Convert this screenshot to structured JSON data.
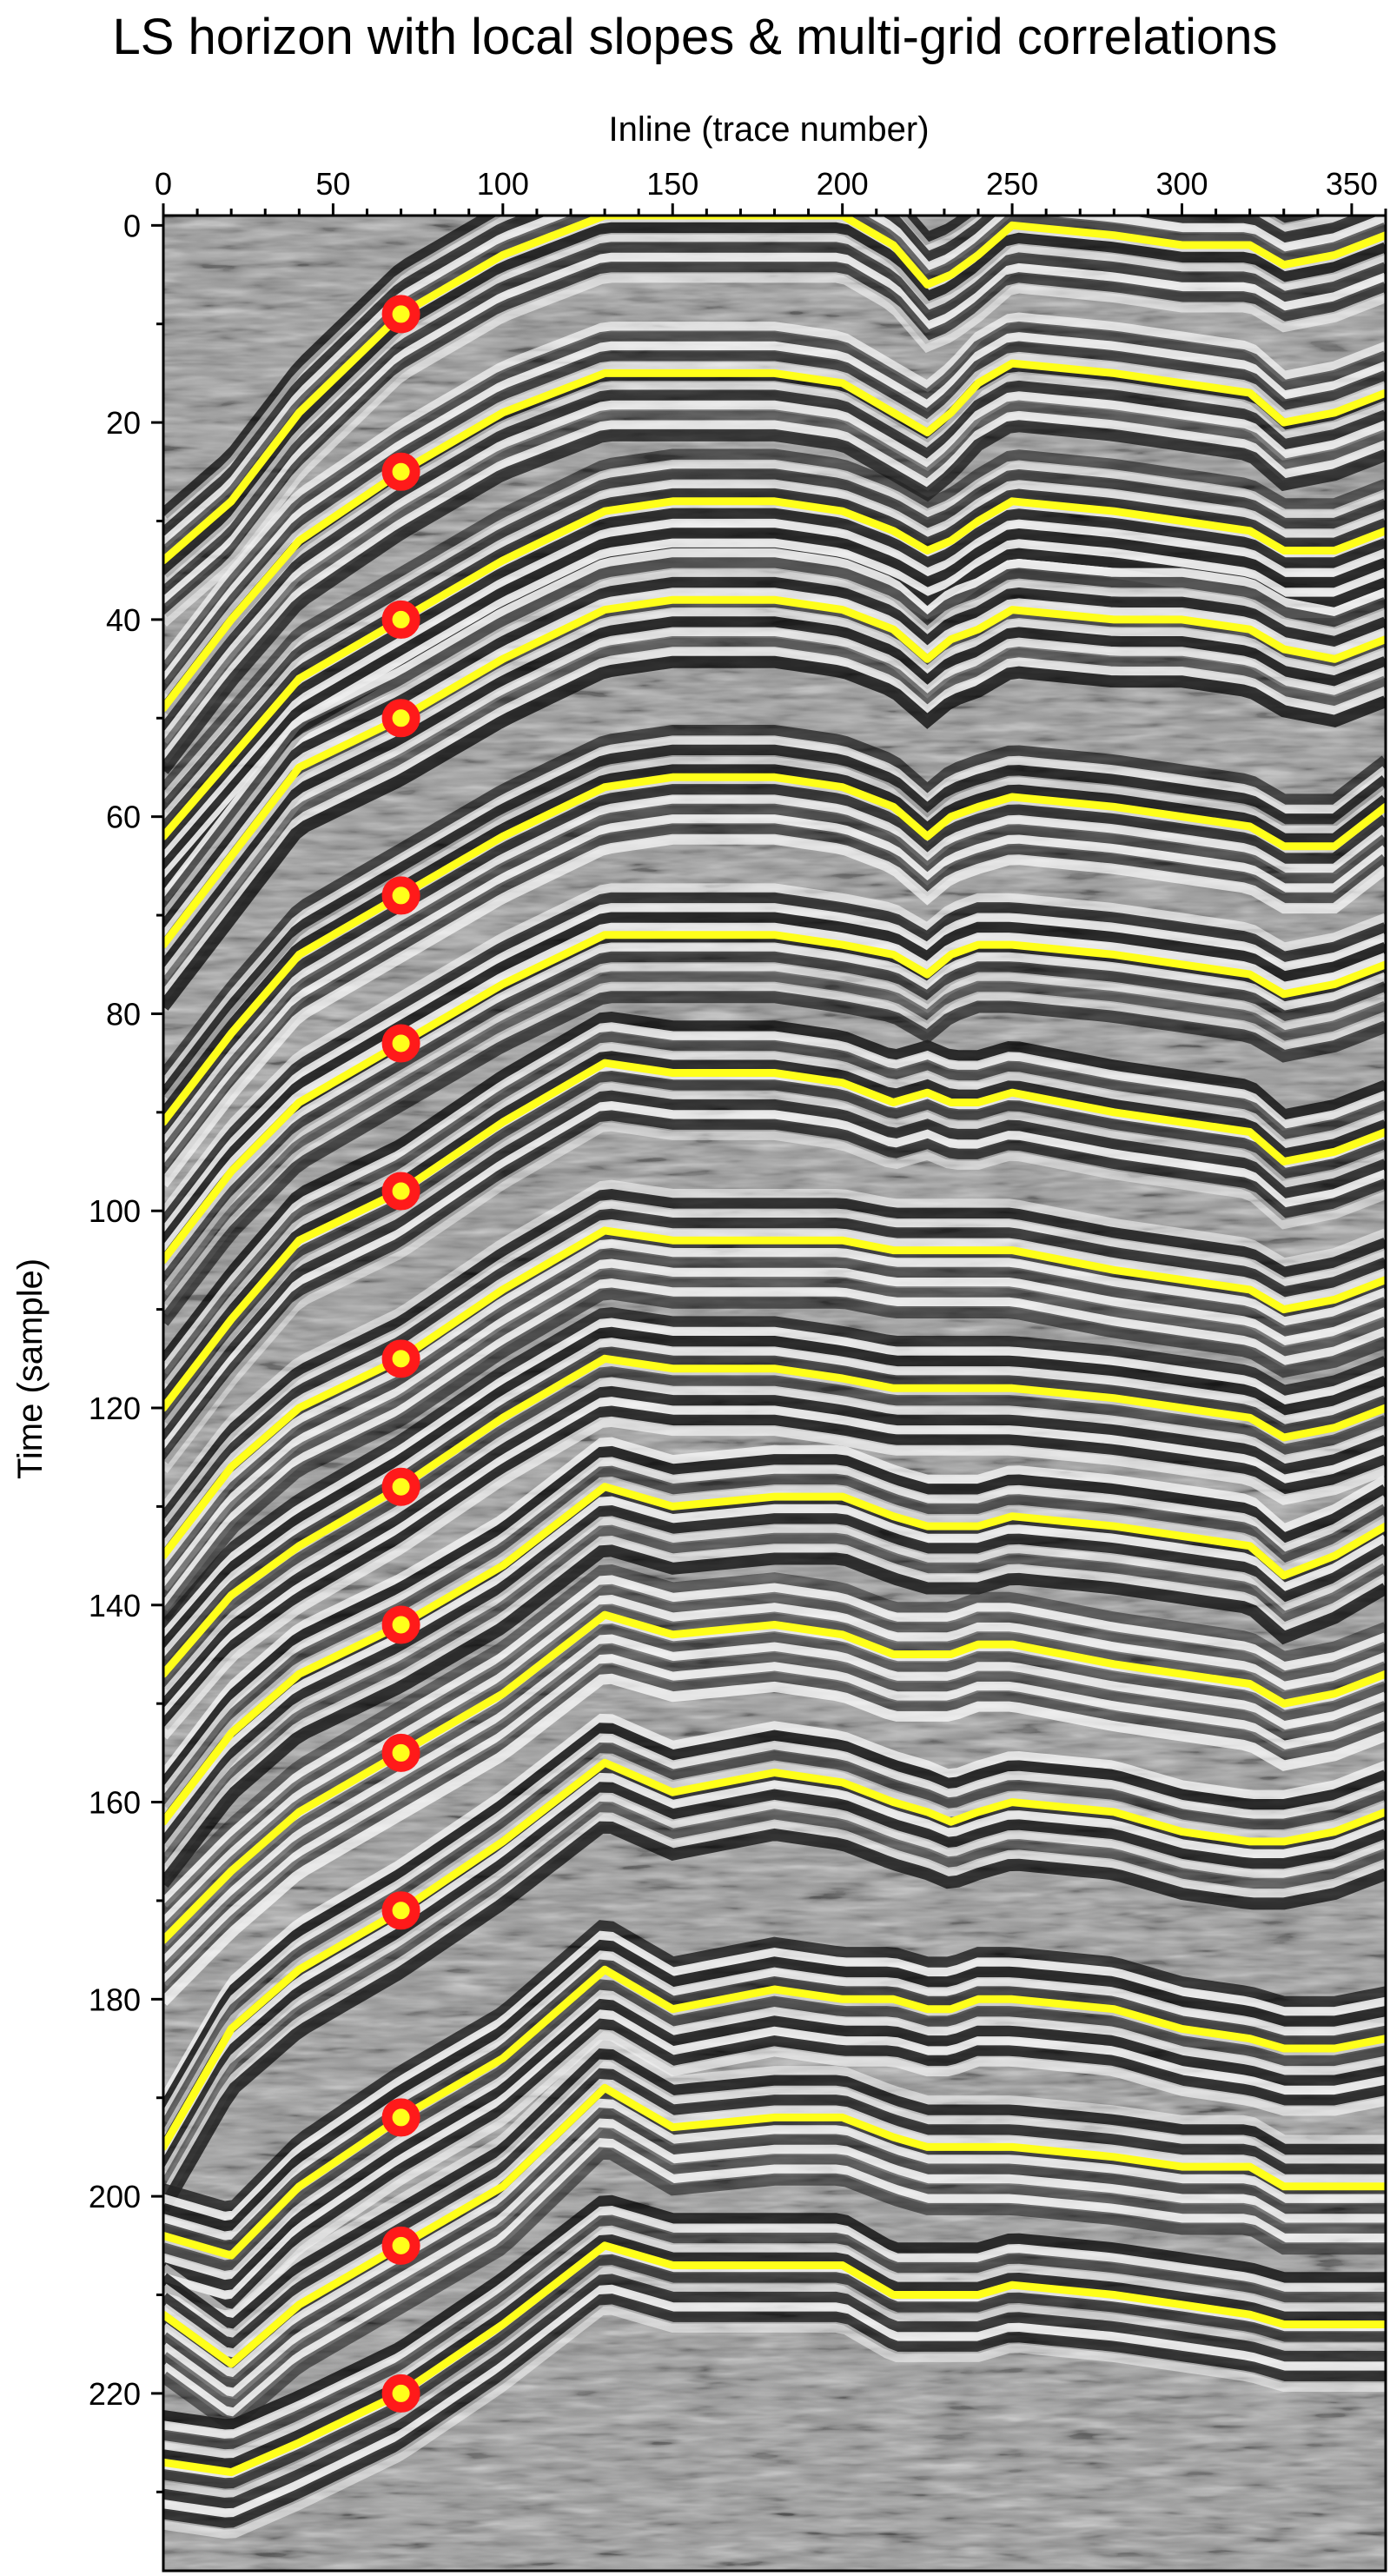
{
  "chart_data": {
    "type": "line",
    "title": "LS horizon with local slopes & multi-grid correlations",
    "xlabel": "Inline (trace number)",
    "ylabel": "Time (sample)",
    "xlim": [
      0,
      360
    ],
    "ylim": [
      238,
      -1
    ],
    "y_inverted": true,
    "x_axis_position": "top",
    "x_ticks": [
      0,
      50,
      100,
      150,
      200,
      250,
      300,
      350
    ],
    "x_tick_labels": [
      "0",
      "50",
      "100",
      "150",
      "200",
      "250",
      "300",
      "350"
    ],
    "y_ticks": [
      0,
      20,
      40,
      60,
      80,
      100,
      120,
      140,
      160,
      180,
      200,
      220
    ],
    "y_tick_labels": [
      "0",
      "20",
      "40",
      "60",
      "80",
      "100",
      "120",
      "140",
      "160",
      "180",
      "200",
      "220"
    ],
    "grid": false,
    "legend": "none",
    "background": "grayscale seismic amplitude section",
    "x": [
      0,
      20,
      40,
      70,
      100,
      130,
      150,
      180,
      200,
      215,
      225,
      232,
      240,
      250,
      280,
      300,
      320,
      330,
      345,
      360
    ],
    "series": [
      {
        "values": [
          34,
          28,
          19,
          9,
          3,
          -1,
          -1,
          -1,
          -1,
          2,
          6,
          5,
          3,
          0,
          1,
          2,
          2,
          4,
          3,
          1
        ]
      },
      {
        "values": [
          49,
          40,
          32,
          25,
          19,
          15,
          15,
          15,
          16,
          19,
          21,
          19,
          16,
          14,
          15,
          16,
          17,
          20,
          19,
          17
        ]
      },
      {
        "values": [
          62,
          54,
          46,
          40,
          34,
          29,
          28,
          28,
          29,
          31,
          33,
          32,
          30,
          28,
          29,
          30,
          31,
          33,
          33,
          31
        ]
      },
      {
        "values": [
          73,
          64,
          55,
          50,
          44,
          39,
          38,
          38,
          39,
          41,
          44,
          42,
          41,
          39,
          40,
          40,
          41,
          43,
          44,
          42
        ]
      },
      {
        "values": [
          91,
          82,
          74,
          68,
          62,
          57,
          56,
          56,
          57,
          59,
          62,
          60,
          59,
          58,
          59,
          60,
          61,
          63,
          63,
          59
        ]
      },
      {
        "values": [
          105,
          96,
          89,
          83,
          77,
          72,
          72,
          72,
          73,
          74,
          76,
          74,
          73,
          73,
          74,
          75,
          76,
          78,
          77,
          75
        ]
      },
      {
        "values": [
          120,
          111,
          103,
          98,
          91,
          85,
          86,
          86,
          87,
          89,
          88,
          89,
          89,
          88,
          90,
          91,
          92,
          95,
          94,
          92
        ]
      },
      {
        "values": [
          135,
          126,
          120,
          115,
          108,
          102,
          103,
          103,
          103,
          104,
          104,
          104,
          104,
          104,
          106,
          107,
          108,
          110,
          109,
          107
        ]
      },
      {
        "values": [
          147,
          139,
          134,
          128,
          121,
          115,
          116,
          116,
          117,
          118,
          118,
          118,
          118,
          118,
          119,
          120,
          121,
          123,
          122,
          120
        ]
      },
      {
        "values": [
          162,
          153,
          147,
          142,
          136,
          128,
          130,
          129,
          129,
          131,
          132,
          132,
          132,
          131,
          132,
          133,
          134,
          137,
          135,
          132
        ]
      },
      {
        "values": [
          174,
          167,
          161,
          155,
          149,
          141,
          143,
          142,
          143,
          145,
          145,
          145,
          144,
          144,
          146,
          147,
          148,
          150,
          149,
          147
        ]
      },
      {
        "values": [
          195,
          183,
          177,
          171,
          164,
          156,
          159,
          157,
          158,
          160,
          161,
          162,
          161,
          160,
          161,
          163,
          164,
          164,
          163,
          161
        ]
      },
      {
        "values": [
          204,
          206,
          199,
          192,
          186,
          177,
          181,
          179,
          180,
          180,
          181,
          181,
          180,
          180,
          181,
          183,
          184,
          185,
          185,
          184
        ]
      },
      {
        "values": [
          212,
          217,
          211,
          205,
          199,
          189,
          193,
          192,
          192,
          194,
          195,
          195,
          195,
          195,
          196,
          197,
          197,
          199,
          199,
          199
        ]
      },
      {
        "values": [
          227,
          228,
          225,
          220,
          213,
          205,
          207,
          207,
          207,
          210,
          210,
          210,
          210,
          209,
          210,
          211,
          212,
          213,
          213,
          213
        ]
      }
    ],
    "control_points": {
      "x": 70,
      "y": [
        9,
        25,
        40,
        50,
        68,
        83,
        98,
        115,
        128,
        142,
        155,
        171,
        192,
        205,
        220
      ]
    },
    "colors": {
      "horizon": "#ffff1a",
      "control_point_ring": "#ff1a1a",
      "control_point_center": "#ffff1a",
      "seismic_light": "#ffffff",
      "seismic_dark": "#000000",
      "seismic_mid": "#9a9a9a"
    }
  }
}
